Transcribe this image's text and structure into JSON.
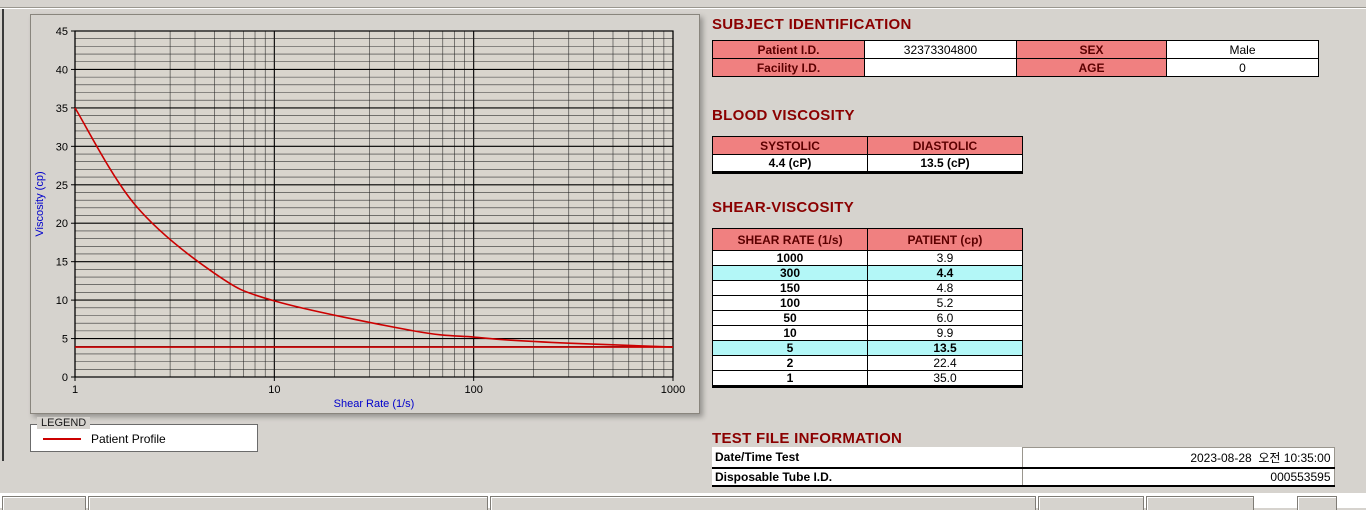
{
  "colors": {
    "header_bg": "#f08080",
    "header_text": "#5c0000",
    "heading": "#8b0000",
    "highlight": "#b3f7f7",
    "series": "#cc0000",
    "axis_label": "#0000cc"
  },
  "legend": {
    "title": "LEGEND",
    "entries": [
      {
        "label": "Patient Profile",
        "color": "#cc0000"
      }
    ]
  },
  "chart_data": {
    "type": "line",
    "title": "",
    "xlabel": "Shear Rate (1/s)",
    "ylabel": "Viscosity (cp)",
    "xscale": "log",
    "xlim": [
      1,
      1000
    ],
    "ylim": [
      0,
      45
    ],
    "x_tick_labels": [
      "1",
      "10",
      "100",
      "1000"
    ],
    "y_tick_step": 5,
    "grid": true,
    "legend_position": "below",
    "x": [
      1,
      2,
      5,
      10,
      50,
      100,
      150,
      300,
      1000
    ],
    "series": [
      {
        "name": "Patient Profile",
        "values": [
          35.0,
          22.4,
          13.5,
          9.9,
          6.0,
          5.2,
          4.8,
          4.4,
          3.9
        ],
        "color": "#cc0000"
      }
    ],
    "baseline": 3.9
  },
  "sections": {
    "subject": {
      "title": "SUBJECT IDENTIFICATION",
      "patient_id_label": "Patient I.D.",
      "patient_id": "32373304800",
      "sex_label": "SEX",
      "sex": "Male",
      "facility_id_label": "Facility I.D.",
      "facility_id": "",
      "age_label": "AGE",
      "age": "0"
    },
    "blood": {
      "title": "BLOOD VISCOSITY",
      "systolic_label": "SYSTOLIC",
      "diastolic_label": "DIASTOLIC",
      "systolic_value": "4.4 (cP)",
      "diastolic_value": "13.5 (cP)"
    },
    "shear": {
      "title": "SHEAR-VISCOSITY",
      "col1": "SHEAR RATE (1/s)",
      "col2": "PATIENT (cp)",
      "rows": [
        {
          "rate": "1000",
          "value": "3.9",
          "highlight": false
        },
        {
          "rate": "300",
          "value": "4.4",
          "highlight": true
        },
        {
          "rate": "150",
          "value": "4.8",
          "highlight": false
        },
        {
          "rate": "100",
          "value": "5.2",
          "highlight": false
        },
        {
          "rate": "50",
          "value": "6.0",
          "highlight": false
        },
        {
          "rate": "10",
          "value": "9.9",
          "highlight": false
        },
        {
          "rate": "5",
          "value": "13.5",
          "highlight": true
        },
        {
          "rate": "2",
          "value": "22.4",
          "highlight": false
        },
        {
          "rate": "1",
          "value": "35.0",
          "highlight": false
        }
      ]
    },
    "test_file": {
      "title": "TEST FILE INFORMATION",
      "rows": [
        {
          "label": "Date/Time Test",
          "value": "2023-08-28  오전 10:35:00"
        },
        {
          "label": "Disposable Tube I.D.",
          "value": "000553595"
        }
      ]
    }
  }
}
